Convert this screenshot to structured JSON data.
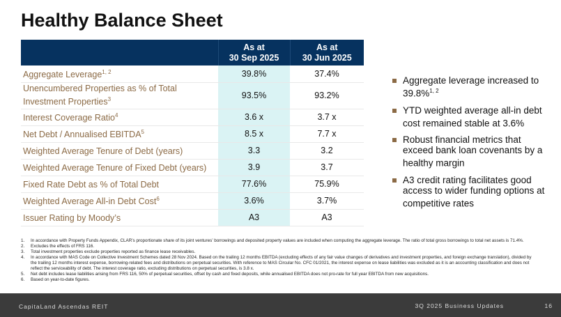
{
  "title": "Healthy Balance Sheet",
  "table": {
    "headers": [
      "",
      "As at\n30 Sep 2025",
      "As at\n30 Jun 2025"
    ],
    "header_lines": [
      [
        "As at",
        "30 Sep 2025"
      ],
      [
        "As at",
        "30 Jun 2025"
      ]
    ],
    "rows": [
      {
        "label": "Aggregate Leverage",
        "sup": "1, 2",
        "sep": "39.8%",
        "jun": "37.4%"
      },
      {
        "label": "Unencumbered Properties as % of Total Investment Properties",
        "sup": "3",
        "sep": "93.5%",
        "jun": "93.2%"
      },
      {
        "label": "Interest Coverage Ratio",
        "sup": "4",
        "sep": "3.6 x",
        "jun": "3.7 x"
      },
      {
        "label": "Net Debt / Annualised EBITDA",
        "sup": "5",
        "sep": "8.5 x",
        "jun": "7.7 x"
      },
      {
        "label": "Weighted Average Tenure of Debt (years)",
        "sup": "",
        "sep": "3.3",
        "jun": "3.2"
      },
      {
        "label": "Weighted Average Tenure of Fixed Debt (years)",
        "sup": "",
        "sep": "3.9",
        "jun": "3.7"
      },
      {
        "label": "Fixed Rate Debt as % of Total Debt",
        "sup": "",
        "sep": "77.6%",
        "jun": "75.9%"
      },
      {
        "label": "Weighted Average All-in Debt Cost",
        "sup": "6",
        "sep": "3.6%",
        "jun": "3.7%"
      },
      {
        "label": "Issuer Rating by Moody’s",
        "sup": "",
        "sep": "A3",
        "jun": "A3"
      }
    ]
  },
  "bullets": [
    {
      "text": "Aggregate leverage increased to 39.8%",
      "sup": "1, 2"
    },
    {
      "text": "YTD weighted average all-in debt cost remained stable at 3.6%",
      "sup": ""
    },
    {
      "text": "Robust financial metrics that exceed bank loan covenants by a healthy margin",
      "sup": ""
    },
    {
      "text": "A3 credit rating facilitates good access to wider funding options at competitive rates",
      "sup": ""
    }
  ],
  "footnotes": [
    "In accordance with Property Funds Appendix, CLAR’s proportionate share of its joint ventures’ borrowings and deposited property values are included when computing the aggregate leverage. The ratio of total gross borrowings to total net assets is 71.4%.",
    "Excludes the effects of FRS 116.",
    "Total investment properties exclude properties reported as finance lease receivables.",
    "In accordance with MAS Code on Collective Investment Schemes dated 28 Nov 2024. Based on the trailing 12 months EBITDA (excluding effects of any fair value changes of derivatives and investment properties, and foreign exchange translation), divided by the trailing 12 months interest expense, borrowing-related fees and distributions on perpetual securities. With reference to MAS Circular No. CFC 01/2021, the interest expense on lease liabilities was excluded as it is an accounting classification and does not reflect the serviceability of debt. The interest coverage ratio, excluding distributions on perpetual securities, is 3.8 x.",
    "Net debt includes lease liabilities arising from FRS 116, 50% of perpetual securities, offset by cash and fixed deposits, while annualised EBITDA does not pro-rate for full year EBITDA from new acquisitions.",
    "Based on year-to-date figures."
  ],
  "footer": {
    "company": "CapitaLand Ascendas REIT",
    "deck": "3Q 2025 Business Updates",
    "page": "16"
  },
  "colors": {
    "header": "#06325f",
    "highlight": "#daf3f4",
    "label": "#8b6a45",
    "footer": "#3b3b3b"
  }
}
